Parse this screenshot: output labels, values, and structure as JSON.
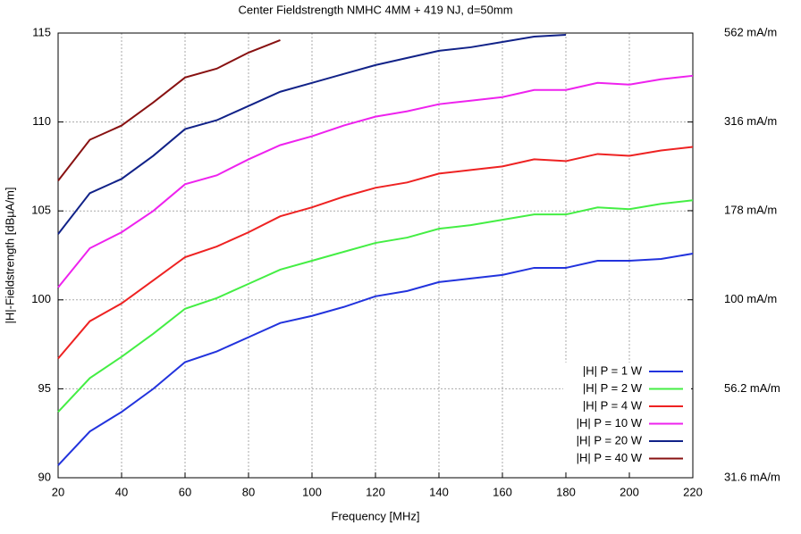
{
  "chart_data": {
    "type": "line",
    "title": "Center Fieldstrength NMHC 4MM + 419 NJ, d=50mm",
    "x_label": "Frequency [MHz]",
    "y_label": "|H|-Fieldstrength [dBµA/m]",
    "x": [
      20,
      30,
      40,
      50,
      60,
      70,
      80,
      90,
      100,
      110,
      120,
      130,
      140,
      150,
      160,
      170,
      180,
      190,
      200,
      210,
      220
    ],
    "xlim": [
      20,
      220
    ],
    "xticks": [
      20,
      40,
      60,
      80,
      100,
      120,
      140,
      160,
      180,
      200,
      220
    ],
    "ylim": [
      90,
      115
    ],
    "yticks": [
      90,
      95,
      100,
      105,
      110,
      115
    ],
    "y2lim": [
      31.6,
      562
    ],
    "y2scale": "log",
    "y2ticks": [
      {
        "value": 31.6,
        "label": "31.6 mA/m"
      },
      {
        "value": 56.2,
        "label": "56.2 mA/m"
      },
      {
        "value": 100,
        "label": "100 mA/m"
      },
      {
        "value": 178,
        "label": "178 mA/m"
      },
      {
        "value": 316,
        "label": "316 mA/m"
      },
      {
        "value": 562,
        "label": "562 mA/m"
      }
    ],
    "grid": true,
    "legend": "lower right",
    "series": [
      {
        "name": "|H| P = 1 W",
        "color": "#2233dd",
        "values": [
          90.7,
          92.6,
          93.7,
          95.0,
          96.5,
          97.1,
          97.9,
          98.7,
          99.1,
          99.6,
          100.2,
          100.5,
          101.0,
          101.2,
          101.4,
          101.8,
          101.8,
          102.2,
          102.2,
          102.3,
          102.6
        ]
      },
      {
        "name": "|H| P = 2 W",
        "color": "#44ee44",
        "values": [
          93.7,
          95.6,
          96.8,
          98.1,
          99.5,
          100.1,
          100.9,
          101.7,
          102.2,
          102.7,
          103.2,
          103.5,
          104.0,
          104.2,
          104.5,
          104.8,
          104.8,
          105.2,
          105.1,
          105.4,
          105.6
        ]
      },
      {
        "name": "|H| P = 4 W",
        "color": "#ee2222",
        "values": [
          96.7,
          98.8,
          99.8,
          101.1,
          102.4,
          103.0,
          103.8,
          104.7,
          105.2,
          105.8,
          106.3,
          106.6,
          107.1,
          107.3,
          107.5,
          107.9,
          107.8,
          108.2,
          108.1,
          108.4,
          108.6
        ]
      },
      {
        "name": "|H| P = 10 W",
        "color": "#ee22ee",
        "values": [
          100.7,
          102.9,
          103.8,
          105.0,
          106.5,
          107.0,
          107.9,
          108.7,
          109.2,
          109.8,
          110.3,
          110.6,
          111.0,
          111.2,
          111.4,
          111.8,
          111.8,
          112.2,
          112.1,
          112.4,
          112.6
        ]
      },
      {
        "name": "|H| P = 20 W",
        "color": "#112288",
        "values": [
          103.7,
          106.0,
          106.8,
          108.1,
          109.6,
          110.1,
          110.9,
          111.7,
          112.2,
          112.7,
          113.2,
          113.6,
          114.0,
          114.2,
          114.5,
          114.8,
          114.9,
          null,
          null,
          null,
          null
        ]
      },
      {
        "name": "|H| P = 40 W",
        "color": "#881111",
        "values": [
          106.7,
          109.0,
          109.8,
          111.1,
          112.5,
          113.0,
          113.9,
          114.6,
          null,
          null,
          null,
          null,
          null,
          null,
          null,
          null,
          null,
          null,
          null,
          null,
          null
        ]
      }
    ]
  }
}
